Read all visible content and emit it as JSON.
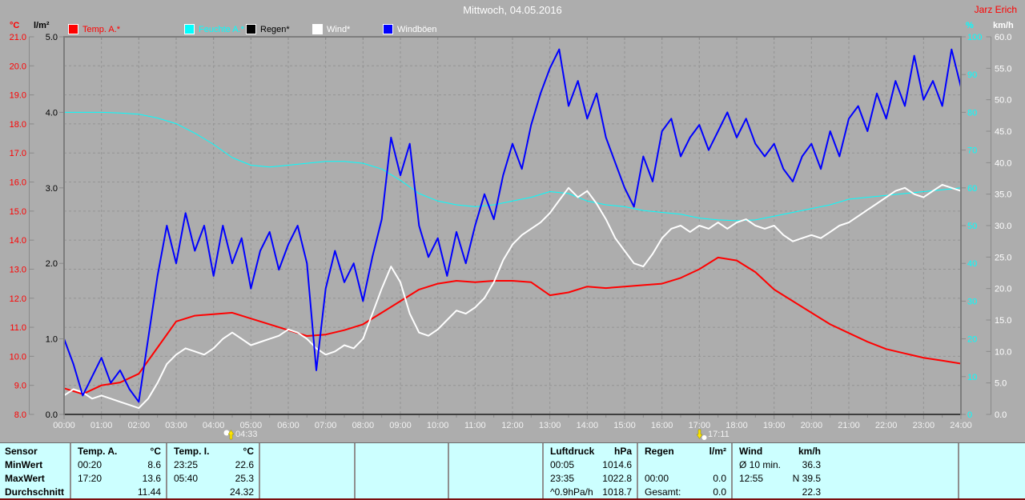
{
  "header": {
    "title": "Mittwoch, 04.05.2016",
    "owner": "Jarz Erich"
  },
  "axis_units": {
    "temp": "°C",
    "rain": "l/m²",
    "hum": "%",
    "wind": "km/h"
  },
  "legend": {
    "items": [
      {
        "label": "Temp. A.*",
        "color": "#ff0000",
        "text_color": "#ff0000"
      },
      {
        "label": "Feuchte A.*",
        "color": "#00ffff",
        "text_color": "#00ffff"
      },
      {
        "label": "Regen*",
        "color": "#000000",
        "text_color": "#000000"
      },
      {
        "label": "Wind*",
        "color": "#ffffff",
        "text_color": "#ffffff"
      },
      {
        "label": "Windböen",
        "color": "#0000ff",
        "text_color": "#ffffff"
      }
    ]
  },
  "sun": {
    "sunrise": "04:33",
    "sunset": "17:11"
  },
  "chart_data": {
    "type": "line",
    "title": "Mittwoch, 04.05.2016",
    "grid": "dashed",
    "x": {
      "range_hours": [
        0,
        24
      ],
      "tick_labels": [
        "00:00",
        "01:00",
        "02:00",
        "03:00",
        "04:00",
        "05:00",
        "06:00",
        "07:00",
        "08:00",
        "09:00",
        "10:00",
        "11:00",
        "12:00",
        "13:00",
        "14:00",
        "15:00",
        "16:00",
        "17:00",
        "18:00",
        "19:00",
        "20:00",
        "21:00",
        "22:00",
        "23:00",
        "24:00"
      ]
    },
    "axes": {
      "temp": {
        "unit": "°C",
        "color": "#ff0000",
        "min": 8,
        "max": 21,
        "ticks": [
          "21.0",
          "20.0",
          "19.0",
          "18.0",
          "17.0",
          "16.0",
          "15.0",
          "14.0",
          "13.0",
          "12.0",
          "11.0",
          "10.0",
          "9.0",
          "8.0"
        ]
      },
      "rain": {
        "unit": "l/m²",
        "color": "#000000",
        "min": 0,
        "max": 5,
        "ticks": [
          "5.0",
          "4.0",
          "3.0",
          "2.0",
          "1.0",
          "0.0"
        ]
      },
      "hum": {
        "unit": "%",
        "color": "#00ffff",
        "min": 0,
        "max": 100,
        "ticks": [
          "100",
          "90",
          "80",
          "70",
          "60",
          "50",
          "40",
          "30",
          "20",
          "10",
          "0"
        ]
      },
      "wind": {
        "unit": "km/h",
        "color": "#ffffff",
        "min": 0,
        "max": 60,
        "ticks": [
          "60.0",
          "55.0",
          "50.0",
          "45.0",
          "40.0",
          "35.0",
          "30.0",
          "25.0",
          "20.0",
          "15.0",
          "10.0",
          "5.0",
          "0.0"
        ]
      }
    },
    "series": [
      {
        "name": "Temp. A.*",
        "slug": "temp-a",
        "axis": "temp",
        "color": "#ff0000",
        "width": 2,
        "interval_min": 30,
        "values": [
          8.9,
          8.7,
          9.0,
          9.1,
          9.4,
          10.3,
          11.2,
          11.4,
          11.45,
          11.5,
          11.3,
          11.1,
          10.9,
          10.7,
          10.75,
          10.9,
          11.1,
          11.5,
          11.9,
          12.3,
          12.5,
          12.6,
          12.55,
          12.6,
          12.6,
          12.55,
          12.1,
          12.2,
          12.4,
          12.35,
          12.4,
          12.45,
          12.5,
          12.7,
          13.0,
          13.4,
          13.3,
          12.9,
          12.3,
          11.9,
          11.5,
          11.1,
          10.8,
          10.5,
          10.25,
          10.1,
          9.95,
          9.85,
          9.75
        ]
      },
      {
        "name": "Feuchte A.*",
        "slug": "feuchte-a",
        "axis": "hum",
        "color": "#00ffff",
        "width": 1,
        "interval_min": 30,
        "values": [
          80,
          80,
          80,
          79.8,
          79.5,
          78.5,
          77,
          74.5,
          71.5,
          68,
          66,
          65.5,
          66,
          66.5,
          67,
          67,
          66.5,
          65,
          62,
          58.5,
          56.5,
          55.5,
          55,
          55.5,
          56.5,
          57.5,
          59,
          58.5,
          56.5,
          55.5,
          55,
          54,
          53.5,
          53,
          52,
          51.5,
          51.3,
          51.5,
          52.5,
          53.5,
          54.5,
          55.5,
          57,
          57.5,
          58,
          58.5,
          59,
          59.5,
          60
        ]
      },
      {
        "name": "Regen*",
        "slug": "regen",
        "axis": "rain",
        "color": "#000000",
        "width": 1,
        "interval_min": 720,
        "values": [
          0,
          0,
          0
        ]
      },
      {
        "name": "Wind*",
        "slug": "wind",
        "axis": "wind",
        "color": "#ffffff",
        "width": 2,
        "interval_min": 15,
        "values": [
          3,
          4,
          3.5,
          2.5,
          3,
          2.5,
          2,
          1.5,
          1,
          2.5,
          5,
          8,
          9.5,
          10.5,
          10,
          9.5,
          10.5,
          12,
          13,
          12,
          11,
          11.5,
          12,
          12.5,
          13.5,
          13,
          12,
          10.5,
          9.5,
          10,
          11,
          10.5,
          12,
          16,
          20,
          23.5,
          21,
          16,
          13,
          12.5,
          13.5,
          15,
          16.5,
          16,
          17,
          18.5,
          21,
          24.5,
          27,
          28.5,
          29.5,
          30.5,
          32,
          34,
          36,
          34.5,
          35.5,
          33.5,
          31,
          28,
          26,
          24,
          23.5,
          25.5,
          28,
          29.5,
          30,
          29,
          30,
          29.5,
          30.5,
          29.5,
          30.5,
          31,
          30,
          29.5,
          30,
          28.5,
          27.5,
          28,
          28.5,
          28,
          29,
          30,
          30.5,
          31.5,
          32.5,
          33.5,
          34.5,
          35.5,
          36,
          35,
          34.5,
          35.5,
          36.5,
          36,
          35.5
        ]
      },
      {
        "name": "Windböen",
        "slug": "windboeen",
        "axis": "wind",
        "color": "#0000ff",
        "width": 2,
        "interval_min": 15,
        "values": [
          12,
          8,
          3,
          6,
          9,
          5,
          7,
          4,
          2,
          12,
          22,
          30,
          24,
          32,
          26,
          30,
          22,
          30,
          24,
          28,
          20,
          26,
          29,
          23,
          27,
          30,
          24,
          7,
          20,
          26,
          21,
          24,
          18,
          25,
          31,
          44,
          38,
          43,
          30,
          25,
          28,
          22,
          29,
          24,
          30,
          35,
          31,
          38,
          43,
          39,
          46,
          51,
          55,
          58,
          49,
          53,
          47,
          51,
          44,
          40,
          36,
          33,
          41,
          37,
          45,
          47,
          41,
          44,
          46,
          42,
          45,
          48,
          44,
          47,
          43,
          41,
          43,
          39,
          37,
          41,
          43,
          39,
          45,
          41,
          47,
          49,
          45,
          51,
          47,
          53,
          49,
          57,
          50,
          53,
          49,
          58,
          52
        ]
      }
    ],
    "sunrise": "04:33",
    "sunset": "17:11"
  },
  "table": {
    "row_labels": [
      "Sensor",
      "MinWert",
      "MaxWert",
      "Durchschnitt"
    ],
    "columns": [
      {
        "name": "Temp. A.",
        "unit": "°C",
        "min": [
          "00:20",
          "8.6"
        ],
        "max": [
          "17:20",
          "13.6"
        ],
        "avg": [
          "",
          "11.44"
        ]
      },
      {
        "name": "Temp. I.",
        "unit": "°C",
        "min": [
          "23:25",
          "22.6"
        ],
        "max": [
          "05:40",
          "25.3"
        ],
        "avg": [
          "",
          "24.32"
        ]
      },
      {
        "name": "",
        "unit": "",
        "min": [
          "",
          ""
        ],
        "max": [
          "",
          ""
        ],
        "avg": [
          "",
          ""
        ]
      },
      {
        "name": "",
        "unit": "",
        "min": [
          "",
          ""
        ],
        "max": [
          "",
          ""
        ],
        "avg": [
          "",
          ""
        ]
      },
      {
        "name": "",
        "unit": "",
        "min": [
          "",
          ""
        ],
        "max": [
          "",
          ""
        ],
        "avg": [
          "",
          ""
        ]
      },
      {
        "name": "Luftdruck",
        "unit": "hPa",
        "min": [
          "00:05",
          "1014.6"
        ],
        "max": [
          "23:35",
          "1022.8"
        ],
        "avg": [
          "^0.9hPa/h",
          "1018.7"
        ]
      },
      {
        "name": "Regen",
        "unit": "l/m²",
        "min": [
          "",
          ""
        ],
        "max": [
          "00:00",
          "0.0"
        ],
        "avg": [
          "Gesamt:",
          "0.0"
        ]
      },
      {
        "name": "Wind",
        "unit": "km/h",
        "min": [
          "Ø 10 min.",
          "36.3"
        ],
        "max": [
          "12:55",
          "N 39.5"
        ],
        "avg": [
          "",
          "22.3"
        ]
      },
      {
        "name": "",
        "unit": "",
        "min": [
          "",
          ""
        ],
        "max": [
          "",
          ""
        ],
        "avg": [
          "",
          ""
        ]
      }
    ]
  }
}
